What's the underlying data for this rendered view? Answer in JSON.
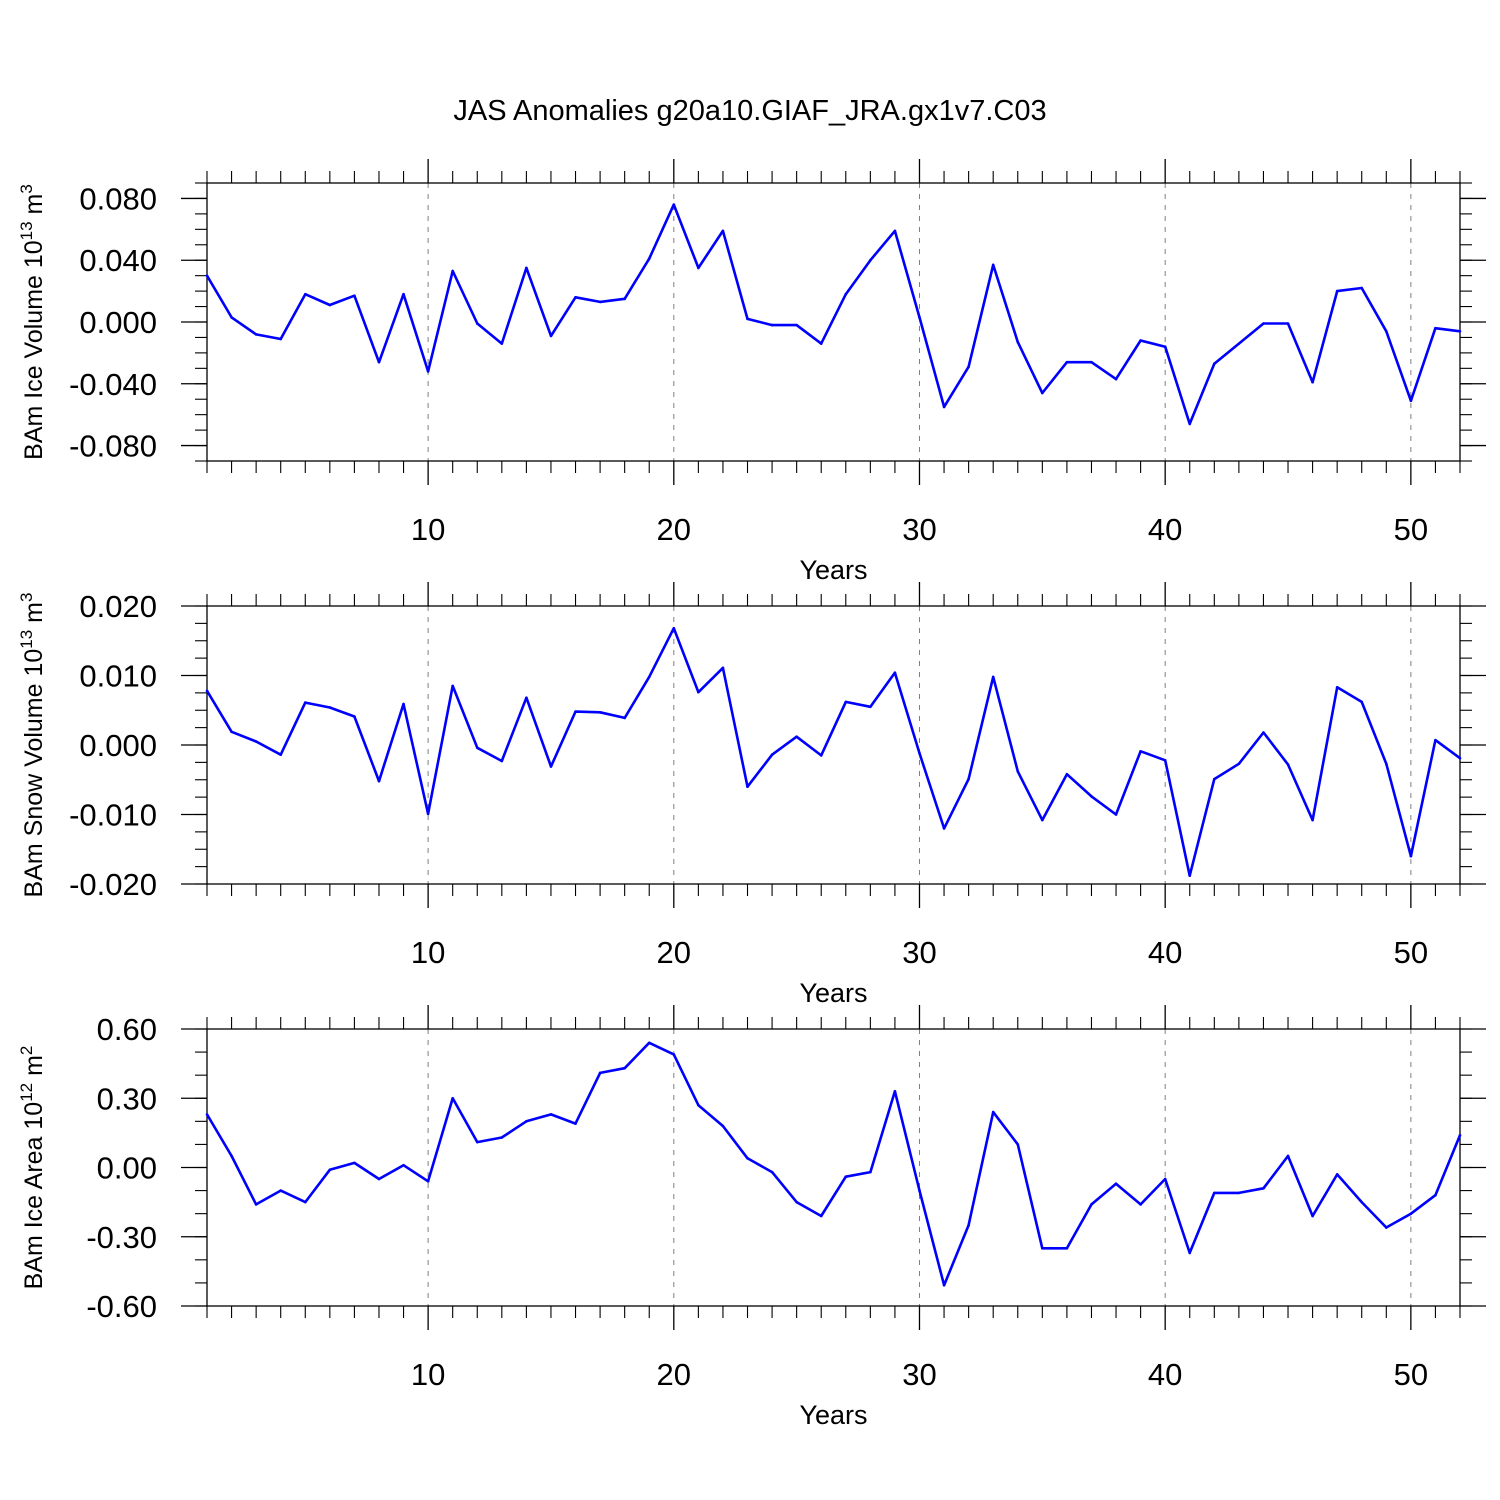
{
  "title": "JAS Anomalies g20a10.GIAF_JRA.gx1v7.C03",
  "colors": {
    "line": "#0000ff",
    "axis": "#000000",
    "grid": "#808080"
  },
  "chart_data": [
    {
      "type": "line",
      "ylabel_main": "BAm Ice Volume 10",
      "ylabel_exp": "13",
      "ylabel_unit": " m",
      "ylabel_unit_exp": "3",
      "xlabel": "Years",
      "xlim": [
        1,
        52
      ],
      "ylim": [
        -0.09,
        0.09
      ],
      "xticks": [
        10,
        20,
        30,
        40,
        50
      ],
      "xtick_labels": [
        "10",
        "20",
        "30",
        "40",
        "50"
      ],
      "yticks": [
        -0.08,
        -0.04,
        0.0,
        0.04,
        0.08
      ],
      "ytick_labels": [
        "-0.080",
        "-0.040",
        "0.000",
        "0.040",
        "0.080"
      ],
      "yminor_step": 0.01,
      "grid": "vertical dashed",
      "x": [
        1,
        2,
        3,
        4,
        5,
        6,
        7,
        8,
        9,
        10,
        11,
        12,
        13,
        14,
        15,
        16,
        17,
        18,
        19,
        20,
        21,
        22,
        23,
        24,
        25,
        26,
        27,
        28,
        29,
        30,
        31,
        32,
        33,
        34,
        35,
        36,
        37,
        38,
        39,
        40,
        41,
        42,
        43,
        44,
        45,
        46,
        47,
        48,
        49,
        50,
        51,
        52
      ],
      "values": [
        0.03,
        0.003,
        -0.008,
        -0.011,
        0.018,
        0.011,
        0.017,
        -0.026,
        0.018,
        -0.032,
        0.033,
        -0.001,
        -0.014,
        0.035,
        -0.009,
        0.016,
        0.013,
        0.015,
        0.041,
        0.076,
        0.035,
        0.059,
        0.002,
        -0.002,
        -0.002,
        -0.014,
        0.018,
        0.04,
        0.059,
        0.003,
        -0.055,
        -0.029,
        0.037,
        -0.013,
        -0.046,
        -0.026,
        -0.026,
        -0.037,
        -0.012,
        -0.016,
        -0.066,
        -0.027,
        -0.014,
        -0.001,
        -0.001,
        -0.039,
        0.02,
        0.022,
        -0.006,
        -0.051,
        -0.004,
        -0.006
      ]
    },
    {
      "type": "line",
      "ylabel_main": "BAm Snow Volume 10",
      "ylabel_exp": "13",
      "ylabel_unit": " m",
      "ylabel_unit_exp": "3",
      "xlabel": "Years",
      "xlim": [
        1,
        52
      ],
      "ylim": [
        -0.02,
        0.02
      ],
      "xticks": [
        10,
        20,
        30,
        40,
        50
      ],
      "xtick_labels": [
        "10",
        "20",
        "30",
        "40",
        "50"
      ],
      "yticks": [
        -0.02,
        -0.01,
        0.0,
        0.01,
        0.02
      ],
      "ytick_labels": [
        "-0.020",
        "-0.010",
        "0.000",
        "0.010",
        "0.020"
      ],
      "yminor_step": 0.0025,
      "grid": "vertical dashed",
      "x": [
        1,
        2,
        3,
        4,
        5,
        6,
        7,
        8,
        9,
        10,
        11,
        12,
        13,
        14,
        15,
        16,
        17,
        18,
        19,
        20,
        21,
        22,
        23,
        24,
        25,
        26,
        27,
        28,
        29,
        30,
        31,
        32,
        33,
        34,
        35,
        36,
        37,
        38,
        39,
        40,
        41,
        42,
        43,
        44,
        45,
        46,
        47,
        48,
        49,
        50,
        51,
        52
      ],
      "values": [
        0.0078,
        0.0019,
        0.0005,
        -0.0014,
        0.0061,
        0.0054,
        0.0041,
        -0.0052,
        0.0059,
        -0.0099,
        0.0085,
        -0.0004,
        -0.0023,
        0.0068,
        -0.0031,
        0.0048,
        0.0047,
        0.0039,
        0.0098,
        0.0168,
        0.0076,
        0.0111,
        -0.006,
        -0.0014,
        0.0012,
        -0.0015,
        0.0062,
        0.0055,
        0.0104,
        -0.0012,
        -0.012,
        -0.0049,
        0.0098,
        -0.0038,
        -0.0108,
        -0.0042,
        -0.0074,
        -0.01,
        -0.0009,
        -0.0022,
        -0.0188,
        -0.0049,
        -0.0027,
        0.0018,
        -0.0028,
        -0.0108,
        0.0083,
        0.0062,
        -0.0027,
        -0.016,
        0.0007,
        -0.0019
      ]
    },
    {
      "type": "line",
      "ylabel_main": "BAm Ice Area 10",
      "ylabel_exp": "12",
      "ylabel_unit": " m",
      "ylabel_unit_exp": "2",
      "xlabel": "Years",
      "xlim": [
        1,
        52
      ],
      "ylim": [
        -0.6,
        0.6
      ],
      "xticks": [
        10,
        20,
        30,
        40,
        50
      ],
      "xtick_labels": [
        "10",
        "20",
        "30",
        "40",
        "50"
      ],
      "yticks": [
        -0.6,
        -0.3,
        0.0,
        0.3,
        0.6
      ],
      "ytick_labels": [
        "-0.60",
        "-0.30",
        "0.00",
        "0.30",
        "0.60"
      ],
      "yminor_step": 0.1,
      "grid": "vertical dashed",
      "x": [
        1,
        2,
        3,
        4,
        5,
        6,
        7,
        8,
        9,
        10,
        11,
        12,
        13,
        14,
        15,
        16,
        17,
        18,
        19,
        20,
        21,
        22,
        23,
        24,
        25,
        26,
        27,
        28,
        29,
        30,
        31,
        32,
        33,
        34,
        35,
        36,
        37,
        38,
        39,
        40,
        41,
        42,
        43,
        44,
        45,
        46,
        47,
        48,
        49,
        50,
        51,
        52
      ],
      "values": [
        0.23,
        0.05,
        -0.16,
        -0.1,
        -0.15,
        -0.01,
        0.02,
        -0.05,
        0.01,
        -0.06,
        0.3,
        0.11,
        0.13,
        0.2,
        0.23,
        0.19,
        0.41,
        0.43,
        0.54,
        0.49,
        0.27,
        0.18,
        0.04,
        -0.02,
        -0.15,
        -0.21,
        -0.04,
        -0.02,
        0.33,
        -0.1,
        -0.51,
        -0.25,
        0.24,
        0.1,
        -0.35,
        -0.35,
        -0.16,
        -0.07,
        -0.16,
        -0.05,
        -0.37,
        -0.11,
        -0.11,
        -0.09,
        0.05,
        -0.21,
        -0.03,
        -0.15,
        -0.26,
        -0.2,
        -0.12,
        0.14
      ]
    }
  ]
}
